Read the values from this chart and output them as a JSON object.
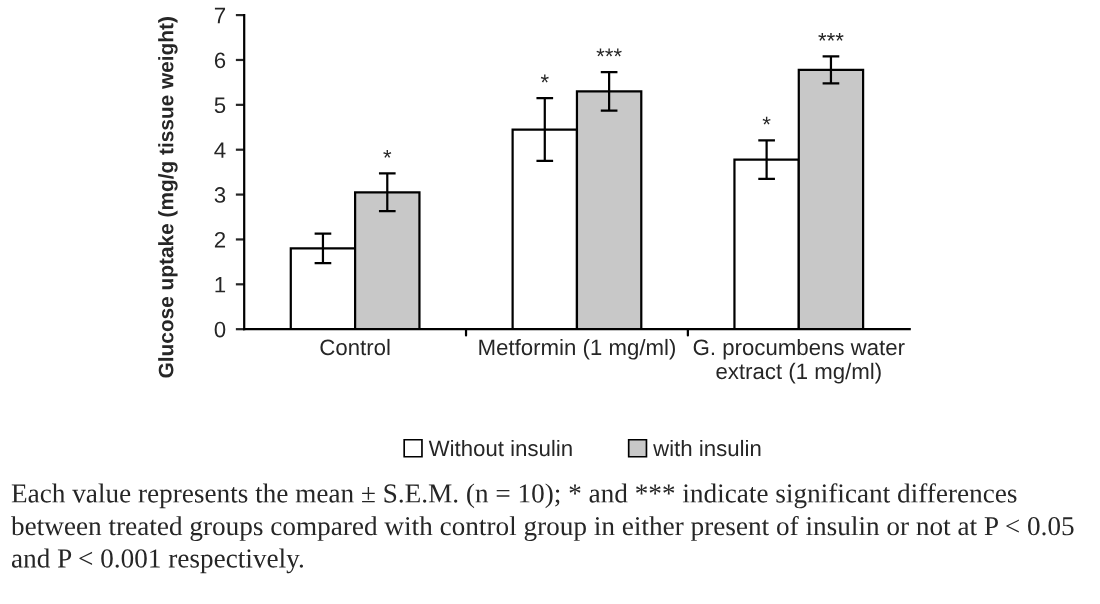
{
  "chart_data": {
    "type": "bar",
    "ylabel": "Glucose uptake (mg/g tissue weight)",
    "categories": [
      "Control",
      "Metformin (1 mg/ml)",
      "G. procumbens water\nextract (1 mg/ml)"
    ],
    "series": [
      {
        "name": "Without insulin",
        "color": "#ffffff",
        "values": [
          1.8,
          4.45,
          3.78
        ],
        "errors": [
          0.33,
          0.7,
          0.43
        ],
        "value_labels": [
          null,
          "*",
          "*"
        ]
      },
      {
        "name": "with insulin",
        "color": "#c8c8c8",
        "values": [
          3.05,
          5.3,
          5.78
        ],
        "errors": [
          0.42,
          0.43,
          0.3
        ],
        "value_labels": [
          "*",
          "***",
          "***"
        ]
      }
    ],
    "ylim": [
      0,
      7
    ],
    "yticks": [
      0,
      1,
      2,
      3,
      4,
      5,
      6,
      7
    ],
    "grid": false,
    "legend": "bottom",
    "annotations": [
      "Each value represents the mean ± S.E.M. (n = 10); * and *** indicate significant differences between treated groups compared with control group in either present of insulin or not at P < 0.05 and P < 0.001 respectively."
    ]
  }
}
